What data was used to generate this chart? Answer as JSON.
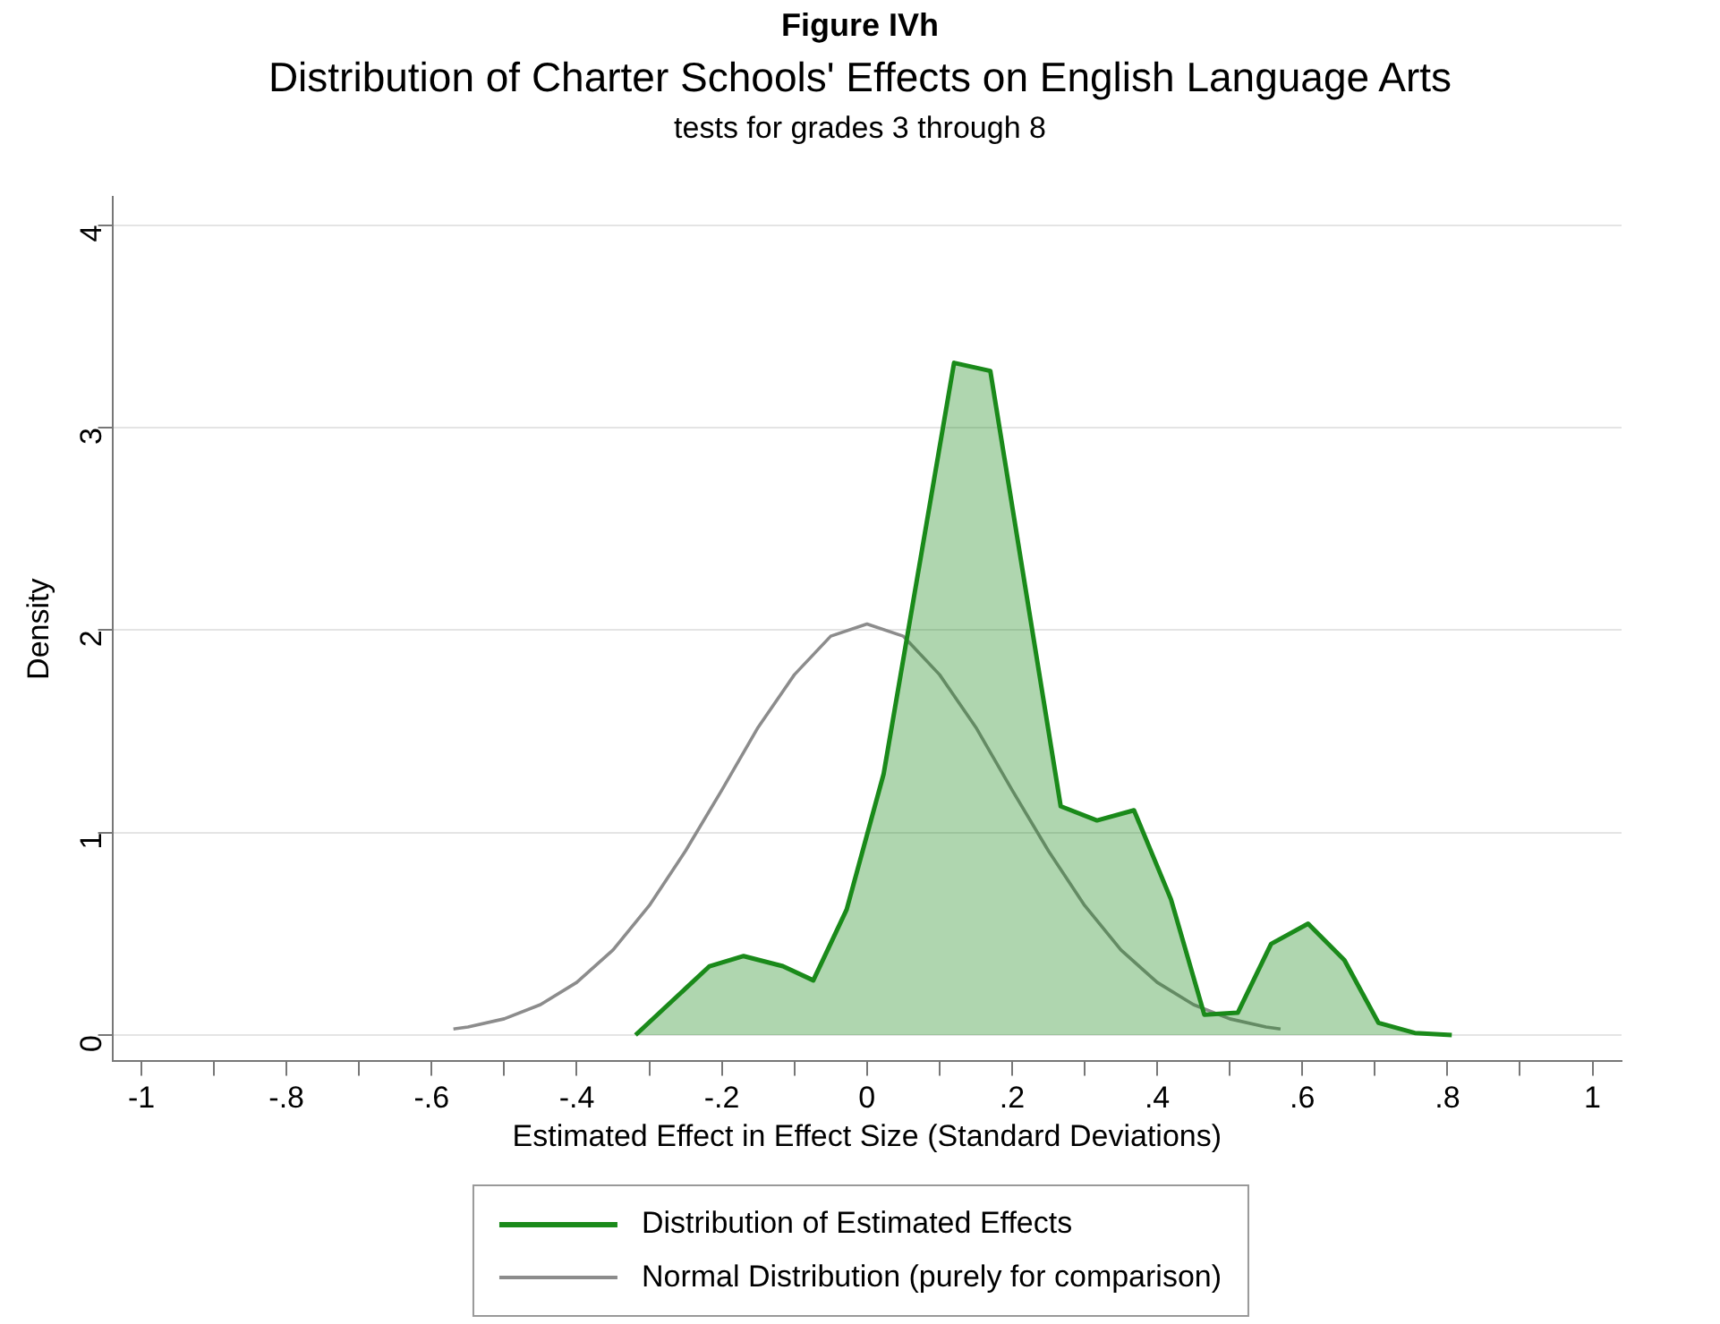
{
  "chart_data": {
    "type": "line",
    "title": "Distribution of Charter Schools' Effects on English Language Arts",
    "subtitle": "tests for grades 3 through 8",
    "annotations": [
      "Figure IVh"
    ],
    "xlabel": "Estimated Effect in Effect Size (Standard Deviations)",
    "ylabel": "Density",
    "xlim": [
      -1.04,
      1.04
    ],
    "ylim": [
      -0.13,
      4.14
    ],
    "xticks": [
      -1,
      {
        "value": -0.9,
        "label": null
      },
      {
        "value": -0.8,
        "label": "-.8"
      },
      {
        "value": -0.7,
        "label": null
      },
      {
        "value": -0.6,
        "label": "-.6"
      },
      {
        "value": -0.5,
        "label": null
      },
      {
        "value": -0.4,
        "label": "-.4"
      },
      {
        "value": -0.3,
        "label": null
      },
      {
        "value": -0.2,
        "label": "-.2"
      },
      {
        "value": -0.1,
        "label": null
      },
      0,
      {
        "value": 0.1,
        "label": null
      },
      {
        "value": 0.2,
        "label": ".2"
      },
      {
        "value": 0.3,
        "label": null
      },
      {
        "value": 0.4,
        "label": ".4"
      },
      {
        "value": 0.5,
        "label": null
      },
      {
        "value": 0.6,
        "label": ".6"
      },
      {
        "value": 0.7,
        "label": null
      },
      {
        "value": 0.8,
        "label": ".8"
      },
      {
        "value": 0.9,
        "label": null
      },
      1
    ],
    "yticks": [
      0,
      1,
      2,
      3,
      4
    ],
    "grid": "y",
    "legend": "bottom",
    "marker": "none",
    "series": [
      {
        "name": "Distribution of Estimated Effects",
        "type": "area",
        "color": "#1a8a1a",
        "line_style": "solid",
        "x": [
          -0.319,
          -0.217,
          -0.17,
          -0.116,
          -0.074,
          -0.028,
          0.023,
          0.12,
          0.17,
          0.267,
          0.317,
          0.368,
          0.419,
          0.465,
          0.511,
          0.557,
          0.608,
          0.658,
          0.705,
          0.755,
          0.806
        ],
        "values": [
          0,
          0.34,
          0.39,
          0.34,
          0.27,
          0.62,
          1.29,
          3.32,
          3.28,
          1.13,
          1.06,
          1.11,
          0.67,
          0.1,
          0.11,
          0.45,
          0.55,
          0.37,
          0.06,
          0.01,
          0
        ]
      },
      {
        "name": "Normal Distribution (purely for comparison)",
        "color": "#8c8c8c",
        "line_style": "solid",
        "x": [
          -0.57,
          -0.55,
          -0.5,
          -0.45,
          -0.4,
          -0.35,
          -0.3,
          -0.25,
          -0.2,
          -0.15,
          -0.1,
          -0.05,
          0,
          0.05,
          0.1,
          0.15,
          0.2,
          0.25,
          0.3,
          0.35,
          0.4,
          0.45,
          0.5,
          0.55,
          0.57
        ],
        "values": [
          0.03,
          0.04,
          0.08,
          0.15,
          0.26,
          0.42,
          0.64,
          0.91,
          1.21,
          1.52,
          1.78,
          1.97,
          2.03,
          1.97,
          1.78,
          1.52,
          1.21,
          0.91,
          0.64,
          0.42,
          0.26,
          0.15,
          0.08,
          0.04,
          0.03
        ]
      }
    ]
  }
}
